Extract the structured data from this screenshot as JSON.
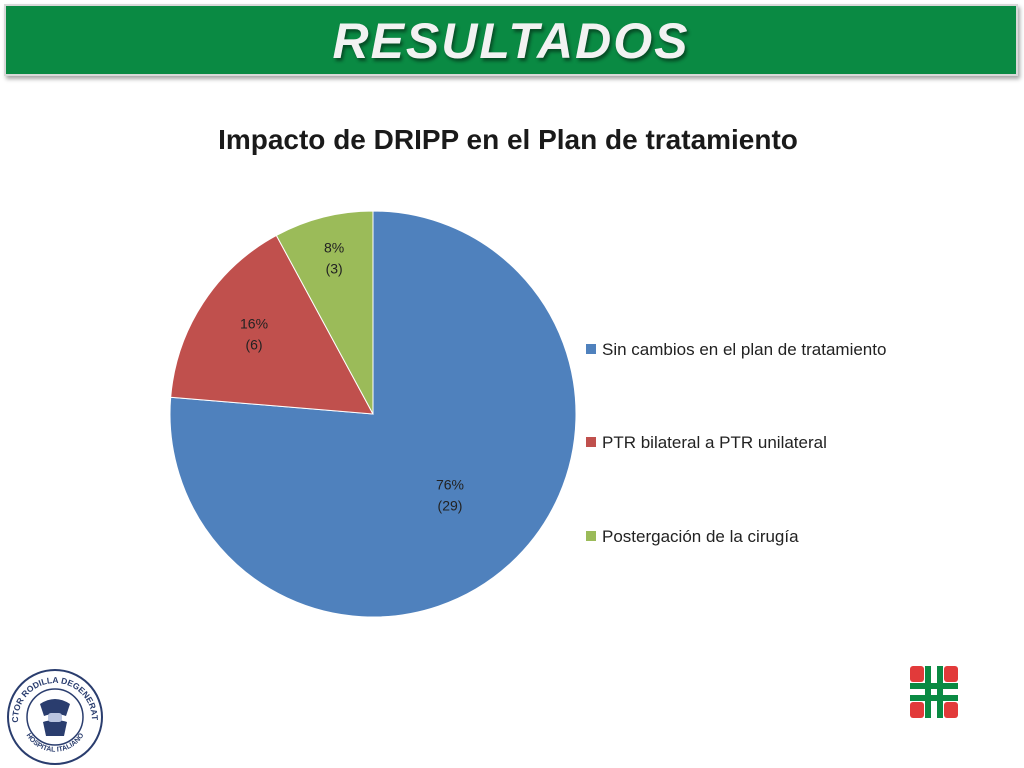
{
  "header": {
    "title": "RESULTADOS"
  },
  "chart_data": {
    "type": "pie",
    "title": "Impacto de DRIPP en el Plan de tratamiento",
    "slices": [
      {
        "label": "Sin cambios en el plan de tratamiento",
        "value": 29,
        "percent": "76%",
        "count_label": "(29)",
        "color": "#4f81bd"
      },
      {
        "label": "PTR bilateral a PTR unilateral",
        "value": 6,
        "percent": "16%",
        "count_label": "(6)",
        "color": "#c0504d"
      },
      {
        "label": "Postergación de la cirugía",
        "value": 3,
        "percent": "8%",
        "count_label": "(3)",
        "color": "#9bbb59"
      }
    ],
    "legend_position": "right"
  },
  "logos": {
    "left": {
      "text_top": "SECTOR RODILLA DEGENERATIVA",
      "text_bottom": "HOSPITAL ITALIANO"
    },
    "right": {
      "icon": "hospital-cross-logo",
      "colors": [
        "#e23a3a",
        "#0a8a43"
      ]
    }
  }
}
